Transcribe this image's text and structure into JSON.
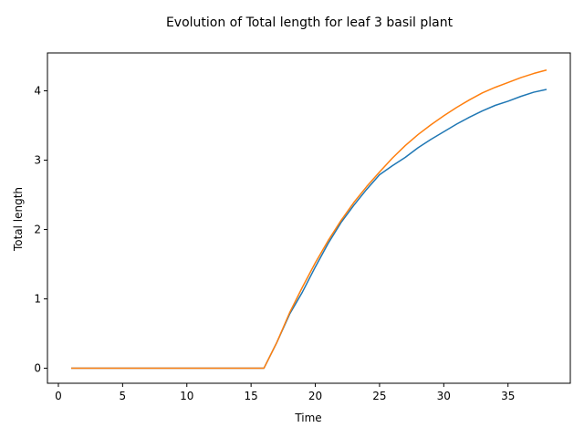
{
  "chart_data": {
    "type": "line",
    "title": "Evolution of Total length for leaf 3 basil plant",
    "xlabel": "Time",
    "ylabel": "Total length",
    "xlim": [
      -0.85,
      39.85
    ],
    "ylim": [
      -0.2165,
      4.5465
    ],
    "xticks": [
      0,
      5,
      10,
      15,
      20,
      25,
      30,
      35
    ],
    "yticks": [
      0,
      1,
      2,
      3,
      4
    ],
    "grid": false,
    "legend": "none",
    "x": [
      1,
      2,
      3,
      4,
      5,
      6,
      7,
      8,
      9,
      10,
      11,
      12,
      13,
      14,
      15,
      16,
      17,
      18,
      19,
      20,
      21,
      22,
      23,
      24,
      25,
      26,
      27,
      28,
      29,
      30,
      31,
      32,
      33,
      34,
      35,
      36,
      37,
      38
    ],
    "series": [
      {
        "color": "#1f77b4",
        "values": [
          0,
          0,
          0,
          0,
          0,
          0,
          0,
          0,
          0,
          0,
          0,
          0,
          0,
          0,
          0,
          0,
          0.37,
          0.78,
          1.1,
          1.46,
          1.8,
          2.1,
          2.35,
          2.58,
          2.79,
          2.92,
          3.04,
          3.18,
          3.3,
          3.41,
          3.52,
          3.62,
          3.71,
          3.79,
          3.85,
          3.92,
          3.98,
          4.02
        ]
      },
      {
        "color": "#ff7f0e",
        "values": [
          0,
          0,
          0,
          0,
          0,
          0,
          0,
          0,
          0,
          0,
          0,
          0,
          0,
          0,
          0,
          0,
          0.37,
          0.8,
          1.17,
          1.52,
          1.84,
          2.13,
          2.39,
          2.62,
          2.83,
          3.03,
          3.21,
          3.37,
          3.51,
          3.64,
          3.76,
          3.87,
          3.97,
          4.05,
          4.12,
          4.19,
          4.25,
          4.3
        ]
      }
    ]
  }
}
